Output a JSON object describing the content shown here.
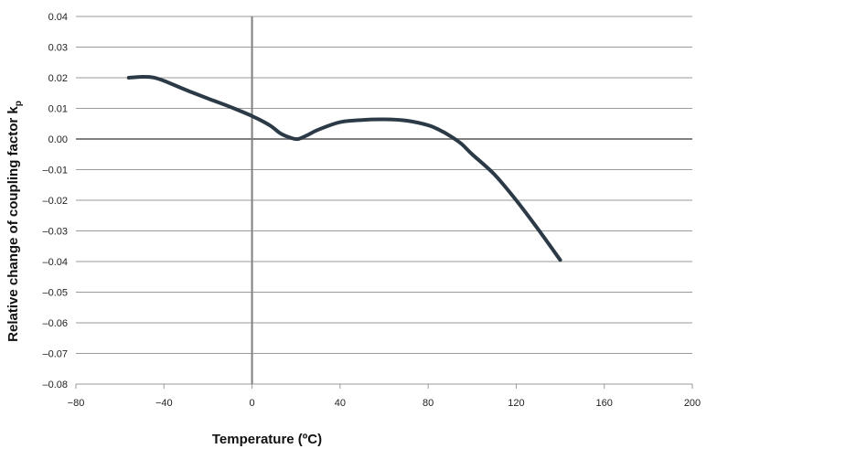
{
  "chart_data": {
    "type": "line",
    "title": "",
    "xlabel": "Temperature (ºC)",
    "ylabel_main": "Relative change of coupling factor k",
    "ylabel_sub": "p",
    "xlim": [
      -80,
      200
    ],
    "ylim": [
      -0.08,
      0.04
    ],
    "x_ticks": [
      -80,
      -40,
      0,
      40,
      80,
      120,
      160,
      200
    ],
    "x_tick_labels": [
      "−80",
      "−40",
      "0",
      "40",
      "80",
      "120",
      "160",
      "200"
    ],
    "y_ticks": [
      0.04,
      0.03,
      0.02,
      0.01,
      0.0,
      -0.01,
      -0.02,
      -0.03,
      -0.04,
      -0.05,
      -0.06,
      -0.07,
      -0.08
    ],
    "y_tick_labels": [
      "0.04",
      "0.03",
      "0.02",
      "0.01",
      "0.00",
      "–0.01",
      "–0.02",
      "–0.03",
      "–0.04",
      "–0.05",
      "–0.06",
      "–0.07",
      "–0.08"
    ],
    "grid": true,
    "zero_line": true,
    "colors": {
      "line": "#2b3a46",
      "grid": "#9a9a9a",
      "zero": "#808080"
    },
    "series": [
      {
        "x": [
          -56,
          -50,
          -45,
          -40,
          -30,
          -20,
          -10,
          0,
          8,
          13,
          18,
          21,
          25,
          30,
          40,
          50,
          60,
          70,
          80,
          85,
          90,
          95,
          100,
          110,
          120,
          130,
          140
        ],
        "y": [
          0.02,
          0.0203,
          0.0201,
          0.019,
          0.016,
          0.0132,
          0.0105,
          0.0075,
          0.0045,
          0.0018,
          0.0003,
          0.0,
          0.0012,
          0.003,
          0.0055,
          0.0062,
          0.0064,
          0.006,
          0.0045,
          0.003,
          0.001,
          -0.0015,
          -0.005,
          -0.0115,
          -0.02,
          -0.0295,
          -0.0395
        ]
      }
    ]
  }
}
